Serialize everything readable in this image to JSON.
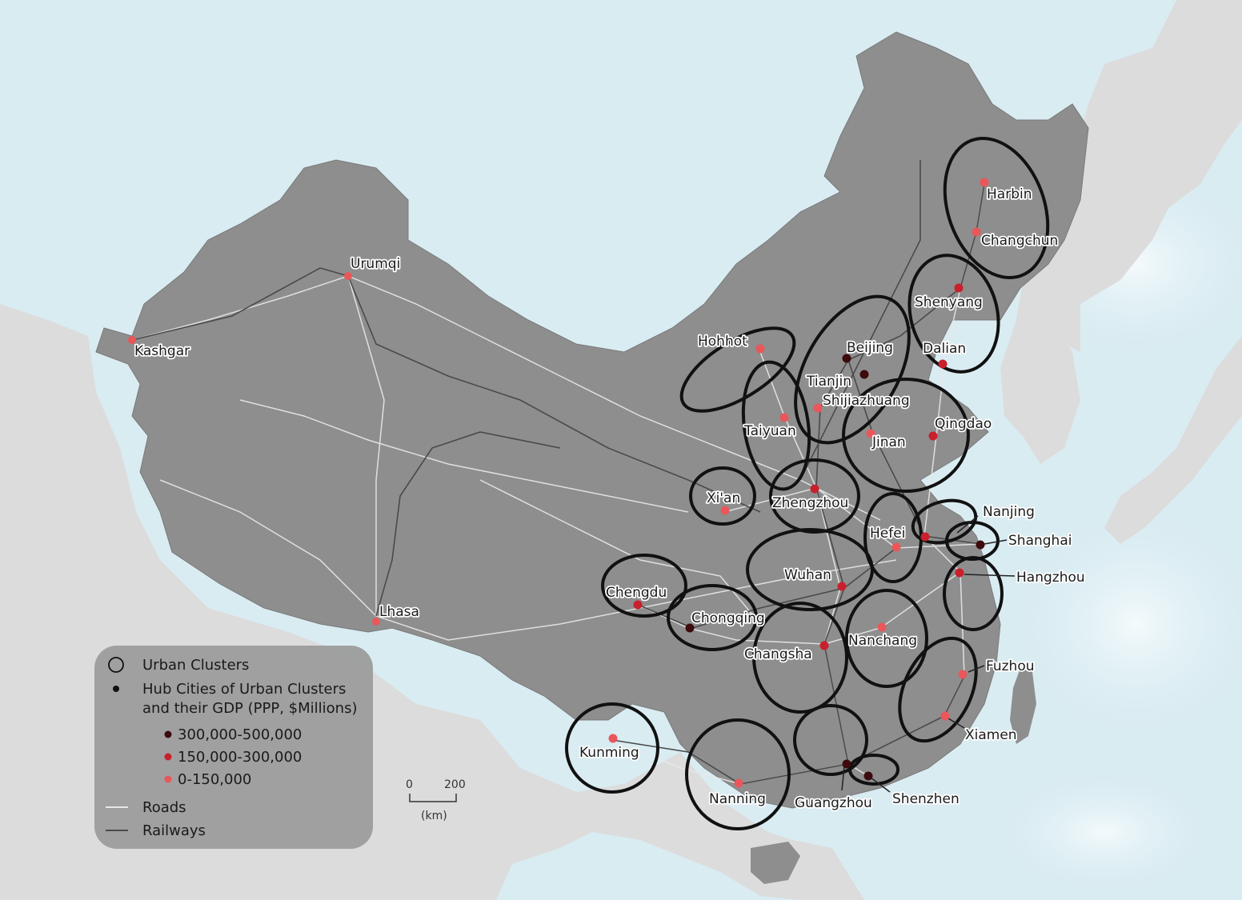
{
  "colors": {
    "sea": "#d9ecf2",
    "land_outside": "#dcdcdc",
    "china": "#8e8e8e",
    "road": "#e8e8e8",
    "railway": "#4a4a4a",
    "cluster_ring": "#111111",
    "gdp_high": "#3d0a0d",
    "gdp_mid": "#c8202c",
    "gdp_low": "#e9575a"
  },
  "cities": [
    {
      "name": "Urumqi",
      "tier": "low"
    },
    {
      "name": "Kashgar",
      "tier": "low"
    },
    {
      "name": "Lhasa",
      "tier": "low"
    },
    {
      "name": "Harbin",
      "tier": "low"
    },
    {
      "name": "Changchun",
      "tier": "low"
    },
    {
      "name": "Shenyang",
      "tier": "mid"
    },
    {
      "name": "Dalian",
      "tier": "mid"
    },
    {
      "name": "Hohhot",
      "tier": "low"
    },
    {
      "name": "Beijing",
      "tier": "high"
    },
    {
      "name": "Tianjin",
      "tier": "high"
    },
    {
      "name": "Shijiazhuang",
      "tier": "low"
    },
    {
      "name": "Taiyuan",
      "tier": "low"
    },
    {
      "name": "Jinan",
      "tier": "low"
    },
    {
      "name": "Qingdao",
      "tier": "mid"
    },
    {
      "name": "Xi'an",
      "tier": "low"
    },
    {
      "name": "Zhengzhou",
      "tier": "mid"
    },
    {
      "name": "Nanjing",
      "tier": "mid"
    },
    {
      "name": "Shanghai",
      "tier": "high"
    },
    {
      "name": "Hefei",
      "tier": "low"
    },
    {
      "name": "Hangzhou",
      "tier": "mid"
    },
    {
      "name": "Wuhan",
      "tier": "mid"
    },
    {
      "name": "Chengdu",
      "tier": "mid"
    },
    {
      "name": "Chongqing",
      "tier": "high"
    },
    {
      "name": "Changsha",
      "tier": "mid"
    },
    {
      "name": "Nanchang",
      "tier": "low"
    },
    {
      "name": "Fuzhou",
      "tier": "low"
    },
    {
      "name": "Xiamen",
      "tier": "low"
    },
    {
      "name": "Kunming",
      "tier": "low"
    },
    {
      "name": "Nanning",
      "tier": "low"
    },
    {
      "name": "Guangzhou",
      "tier": "high"
    },
    {
      "name": "Shenzhen",
      "tier": "high"
    }
  ],
  "legend": {
    "clusters": "Urban Clusters",
    "hub_line1": "Hub Cities of Urban Clusters",
    "hub_line2": "and their GDP (PPP, $Millions)",
    "gdp_high": "300,000-500,000",
    "gdp_mid": "150,000-300,000",
    "gdp_low": "0-150,000",
    "roads": "Roads",
    "railways": "Railways"
  },
  "scale": {
    "zero": "0",
    "max": "200",
    "unit": "(km)"
  }
}
